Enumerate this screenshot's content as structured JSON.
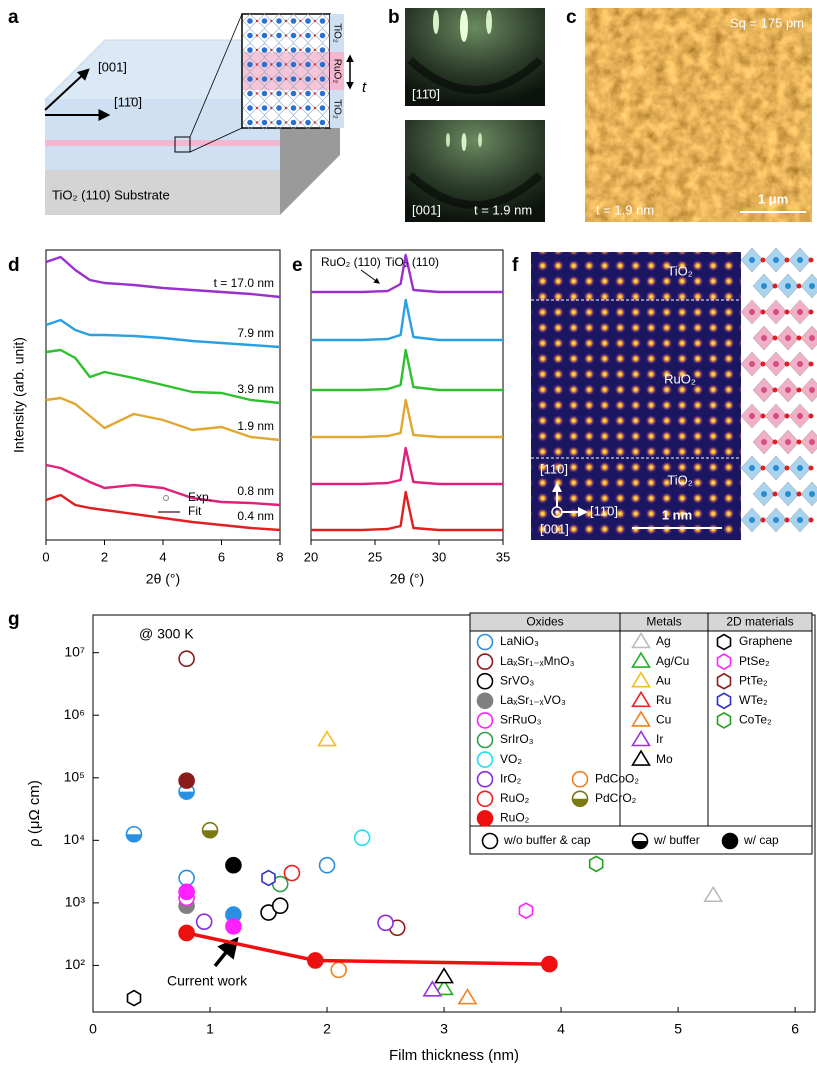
{
  "figure": {
    "a": {
      "letter": "a",
      "dir_001": "[001]",
      "dir_1-10": "[11̄0]",
      "thickness": "t",
      "layer_top": "TiO₂",
      "layer_mid": "RuO₂",
      "layer_bot": "TiO₂",
      "substrate": "TiO₂ (110) Substrate"
    },
    "b": {
      "letter": "b",
      "top_dir": "[11̄0]",
      "bottom_dir": "[001]",
      "bottom_t": "t = 1.9 nm"
    },
    "c": {
      "letter": "c",
      "roughness": "Sq = 175 pm",
      "scale": "1 μm",
      "t": "t = 1.9 nm"
    },
    "d": {
      "letter": "d"
    },
    "e": {
      "letter": "e"
    },
    "f": {
      "letter": "f",
      "top": "TiO₂",
      "middle": "RuO₂",
      "bottom": "TiO₂",
      "dir_110": "[110]",
      "dir_001": "[001]",
      "dir_1-10": "[11̄0]",
      "scale": "1 nm"
    },
    "g": {
      "letter": "g"
    }
  },
  "chart_data": [
    {
      "type": "line",
      "x_label": "2θ (°)",
      "y_label": "Intensity (arb. unit)",
      "xlim": [
        0,
        8
      ],
      "xticks": [
        0,
        2,
        4,
        6,
        8
      ],
      "ylim": [
        0,
        29
      ],
      "x": [
        0,
        0.5,
        1,
        1.5,
        2,
        3,
        4,
        5,
        6,
        7,
        8
      ],
      "legend": {
        "exp": "Exp.",
        "fit": "Fit"
      },
      "series": [
        {
          "name": "t = 17.0 nm",
          "color": "#9b30d0",
          "values": [
            27.8,
            28.3,
            27,
            26,
            25.7,
            25.5,
            25.2,
            25,
            24.8,
            24.6,
            24.3
          ]
        },
        {
          "name": "7.9 nm",
          "color": "#2aa0e0",
          "values": [
            21.5,
            22,
            21,
            20.5,
            20.5,
            20.4,
            20.2,
            19.9,
            19.7,
            19.5,
            19.3
          ]
        },
        {
          "name": "3.9 nm",
          "color": "#2ec02e",
          "values": [
            18.8,
            19,
            18.2,
            16.3,
            16.8,
            16.2,
            15.5,
            14.8,
            14.7,
            14,
            13.7
          ]
        },
        {
          "name": "1.9 nm",
          "color": "#e0a830",
          "values": [
            14,
            14.2,
            13.6,
            12.4,
            11.2,
            12.6,
            12,
            11,
            11.3,
            10.3,
            10
          ]
        },
        {
          "name": "0.8 nm",
          "color": "#e0207a",
          "values": [
            7.5,
            7.2,
            6.5,
            5.8,
            5.2,
            5.5,
            5.2,
            4.2,
            3.8,
            3.7,
            3.5
          ]
        },
        {
          "name": "0.4 nm",
          "color": "#e02020",
          "values": [
            4,
            4.5,
            3.5,
            3.2,
            3,
            2.6,
            2.2,
            1.8,
            1.5,
            1.2,
            1
          ]
        }
      ]
    },
    {
      "type": "line",
      "x_label": "2θ (°)",
      "xlim": [
        20,
        35
      ],
      "xticks": [
        20,
        25,
        30,
        35
      ],
      "ylim": [
        0,
        29
      ],
      "x": [
        20,
        22,
        24,
        26,
        27,
        27.4,
        28,
        30,
        32,
        35
      ],
      "annotations": [
        "RuO₂ (110)",
        "TiO₂ (110)"
      ],
      "series": [
        {
          "color": "#9b30d0",
          "values": [
            24.8,
            24.8,
            24.8,
            24.9,
            25.6,
            28.5,
            25,
            24.8,
            24.8,
            24.8
          ]
        },
        {
          "color": "#2aa0e0",
          "values": [
            20,
            20,
            20,
            20.1,
            20.5,
            24,
            20.3,
            20,
            20,
            20
          ]
        },
        {
          "color": "#2ec02e",
          "values": [
            15,
            15,
            15,
            15.1,
            15.5,
            19,
            15.3,
            15,
            15,
            15
          ]
        },
        {
          "color": "#e0a830",
          "values": [
            10.3,
            10.3,
            10.3,
            10.4,
            10.7,
            14,
            10.5,
            10.3,
            10.3,
            10.3
          ]
        },
        {
          "color": "#e0207a",
          "values": [
            5.6,
            5.6,
            5.6,
            5.7,
            6,
            9.2,
            5.8,
            5.6,
            5.6,
            5.6
          ]
        },
        {
          "color": "#e02020",
          "values": [
            1,
            1,
            1,
            1.1,
            1.4,
            4.8,
            1.2,
            1,
            1,
            1
          ]
        }
      ]
    },
    {
      "type": "scatter",
      "log_y": true,
      "x_label": "Film thickness (nm)",
      "y_label": "ρ (μΩ cm)",
      "xlim": [
        0,
        6.17
      ],
      "xticks": [
        0,
        1,
        2,
        3,
        4,
        5,
        6
      ],
      "ylim": [
        18,
        40000000
      ],
      "yticks": [
        {
          "value": 100,
          "label": "10²"
        },
        {
          "value": 1000,
          "label": "10³"
        },
        {
          "value": 10000,
          "label": "10⁴"
        },
        {
          "value": 100000,
          "label": "10⁵"
        },
        {
          "value": 1000000,
          "label": "10⁶"
        },
        {
          "value": 10000000,
          "label": "10⁷"
        }
      ],
      "annotations": [
        "@ 300 K",
        "Current work"
      ],
      "fill_key": [
        {
          "fill": "open",
          "label": "w/o buffer & cap"
        },
        {
          "fill": "half",
          "label": "w/ buffer"
        },
        {
          "fill": "filled",
          "label": "w/ cap"
        }
      ],
      "groups": [
        {
          "title": "Oxides",
          "marker": "circle",
          "series": [
            {
              "name": "LaNiO₃",
              "color": "#2a8fe0",
              "legend_fill": "open",
              "x": [
                0.35,
                0.8,
                0.8,
                1.2,
                2.0
              ],
              "values": [
                12500,
                60000,
                2500,
                650,
                4000
              ],
              "fills": [
                "half",
                "half",
                "open",
                "filled",
                "open"
              ]
            },
            {
              "name": "LaₓSr₁₋ₓMnO₃",
              "color": "#8b1a1a",
              "legend_fill": "open",
              "x": [
                0.8,
                0.8,
                2.6
              ],
              "values": [
                8000000,
                90000,
                400
              ],
              "fills": [
                "open",
                "filled",
                "open"
              ]
            },
            {
              "name": "SrVO₃",
              "color": "#000000",
              "legend_fill": "open",
              "x": [
                1.2,
                1.5,
                1.6
              ],
              "values": [
                4000,
                700,
                900
              ],
              "fills": [
                "filled",
                "open",
                "open"
              ]
            },
            {
              "name": "LaₓSr₁₋ₓVO₃",
              "color": "#808080",
              "legend_fill": "filled",
              "x": [
                0.8
              ],
              "values": [
                900
              ],
              "fills": [
                "filled"
              ]
            },
            {
              "name": "SrRuO₃",
              "color": "#ff20ff",
              "legend_fill": "open",
              "x": [
                0.8,
                0.8,
                1.2
              ],
              "values": [
                1200,
                1500,
                420
              ],
              "fills": [
                "open",
                "filled",
                "filled"
              ]
            },
            {
              "name": "SrIrO₃",
              "color": "#2ea04a",
              "legend_fill": "open",
              "x": [
                1.6
              ],
              "values": [
                2000
              ],
              "fills": [
                "open"
              ]
            },
            {
              "name": "VO₂",
              "color": "#20dff0",
              "legend_fill": "open",
              "x": [
                2.3
              ],
              "values": [
                11000
              ],
              "fills": [
                "open"
              ]
            },
            {
              "name": "IrO₂",
              "color": "#8a2be2",
              "legend_fill": "open",
              "x": [
                0.95,
                2.5
              ],
              "values": [
                500,
                480
              ],
              "fills": [
                "open",
                "open"
              ]
            },
            {
              "name": "PdCoO₂",
              "color": "#f08020",
              "legend_fill": "open",
              "x": [
                2.1
              ],
              "values": [
                85
              ],
              "fills": [
                "open"
              ]
            },
            {
              "name": "RuO₂",
              "color": "#ee2020",
              "legend_fill": "open",
              "x": [
                1.7
              ],
              "values": [
                3000
              ],
              "fills": [
                "open"
              ]
            },
            {
              "name": "PdCrO₂",
              "color": "#7a7a10",
              "legend_fill": "half",
              "x": [
                1.0
              ],
              "values": [
                14500
              ],
              "fills": [
                "half"
              ]
            },
            {
              "name": "RuO₂",
              "color": "#ee1010",
              "legend_fill": "filled",
              "line": true,
              "x": [
                0.8,
                1.9,
                3.9
              ],
              "values": [
                330,
                120,
                105
              ],
              "fills": [
                "filled",
                "filled",
                "filled"
              ]
            }
          ]
        },
        {
          "title": "Metals",
          "marker": "triangle",
          "series": [
            {
              "name": "Ag",
              "color": "#bbbbbb",
              "legend_fill": "open",
              "x": [
                5.3
              ],
              "values": [
                1300
              ],
              "fills": [
                "open"
              ]
            },
            {
              "name": "Ag/Cu",
              "color": "#20b020",
              "legend_fill": "open",
              "x": [
                3.0
              ],
              "values": [
                42
              ],
              "fills": [
                "open"
              ]
            },
            {
              "name": "Au",
              "color": "#f0c020",
              "legend_fill": "open",
              "x": [
                2.0
              ],
              "values": [
                400000
              ],
              "fills": [
                "open"
              ]
            },
            {
              "name": "Ru",
              "color": "#ee2020",
              "legend_fill": "open",
              "x": [],
              "values": [],
              "fills": []
            },
            {
              "name": "Cu",
              "color": "#f08020",
              "legend_fill": "open",
              "x": [
                3.2
              ],
              "values": [
                30
              ],
              "fills": [
                "open"
              ]
            },
            {
              "name": "Ir",
              "color": "#9a30e0",
              "legend_fill": "open",
              "x": [
                2.9
              ],
              "values": [
                40
              ],
              "fills": [
                "open"
              ]
            },
            {
              "name": "Mo",
              "color": "#000000",
              "legend_fill": "open",
              "x": [
                3.0
              ],
              "values": [
                65
              ],
              "fills": [
                "open"
              ]
            }
          ]
        },
        {
          "title": "2D materials",
          "marker": "hexagon",
          "series": [
            {
              "name": "Graphene",
              "color": "#000000",
              "legend_fill": "open",
              "x": [
                0.35
              ],
              "values": [
                30
              ],
              "fills": [
                "open"
              ]
            },
            {
              "name": "PtSe₂",
              "color": "#ff20ff",
              "legend_fill": "open",
              "x": [
                3.7
              ],
              "values": [
                750
              ],
              "fills": [
                "open"
              ]
            },
            {
              "name": "PtTe₂",
              "color": "#8b1a1a",
              "legend_fill": "open",
              "x": [],
              "values": [],
              "fills": []
            },
            {
              "name": "WTe₂",
              "color": "#3030d0",
              "legend_fill": "open",
              "x": [
                1.5
              ],
              "values": [
                2500
              ],
              "fills": [
                "open"
              ]
            },
            {
              "name": "CoTe₂",
              "color": "#20a020",
              "legend_fill": "open",
              "x": [
                4.3
              ],
              "values": [
                4200
              ],
              "fills": [
                "open"
              ]
            }
          ]
        }
      ]
    }
  ]
}
